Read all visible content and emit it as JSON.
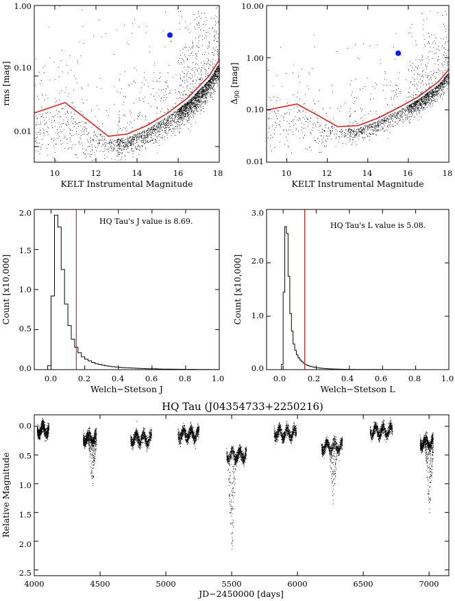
{
  "chart_data": [
    {
      "id": "rms",
      "type": "scatter",
      "xlabel": "KELT Instrumental Magnitude",
      "ylabel": "rms [mag]",
      "xlim": [
        9,
        18
      ],
      "ylim": [
        0.006,
        1.0
      ],
      "yscale": "log",
      "xticks": [
        "10",
        "12",
        "14",
        "16",
        "18"
      ],
      "xtick_values": [
        10,
        12,
        14,
        16,
        18
      ],
      "yticks": [
        "1.00",
        "0.10",
        "0.01"
      ],
      "ytick_values": [
        1.0,
        0.1,
        0.01
      ],
      "red_line": {
        "x": [
          9.0,
          10.5,
          11.5,
          12.6,
          13.5,
          14.5,
          15.5,
          16.5,
          17.5,
          18.0
        ],
        "y": [
          0.03,
          0.042,
          0.025,
          0.014,
          0.015,
          0.02,
          0.03,
          0.05,
          0.1,
          0.17
        ]
      },
      "highlight": {
        "x": 15.6,
        "y": 0.38,
        "color": "#0a1cf0"
      },
      "point_color": "#000000",
      "line_color": "#e02020"
    },
    {
      "id": "delta90",
      "type": "scatter",
      "xlabel": "KELT Instrumental Magnitude",
      "ylabel": "Δ90 [mag]",
      "ylabel_main": "Δ",
      "ylabel_sub": "90",
      "ylabel_unit": " [mag]",
      "xlim": [
        9,
        18
      ],
      "ylim": [
        0.01,
        10.0
      ],
      "yscale": "log",
      "xticks": [
        "10",
        "12",
        "14",
        "16",
        "18"
      ],
      "xtick_values": [
        10,
        12,
        14,
        16,
        18
      ],
      "yticks": [
        "10.00",
        "1.00",
        "0.10",
        "0.01"
      ],
      "ytick_values": [
        10.0,
        1.0,
        0.1,
        0.01
      ],
      "red_line": {
        "x": [
          9.0,
          10.5,
          11.5,
          12.5,
          13.5,
          14.5,
          15.5,
          16.5,
          17.5,
          18.0
        ],
        "y": [
          0.1,
          0.13,
          0.08,
          0.048,
          0.05,
          0.07,
          0.11,
          0.18,
          0.35,
          0.6
        ]
      },
      "highlight": {
        "x": 15.5,
        "y": 1.22,
        "color": "#0a1cf0"
      },
      "point_color": "#000000",
      "line_color": "#e02020"
    },
    {
      "id": "hist_j",
      "type": "bar",
      "xlabel": "Welch−Stetson J",
      "ylabel": "Count [x10,000]",
      "annotation": "HQ Tau's J value is 8.69.",
      "xlim": [
        -0.1,
        1.0
      ],
      "ylim": [
        0,
        2.0
      ],
      "bin_width": 0.02,
      "bins_start": -0.02,
      "values": [
        0.05,
        0.92,
        1.93,
        1.78,
        1.25,
        0.82,
        0.55,
        0.38,
        0.28,
        0.21,
        0.16,
        0.13,
        0.11,
        0.09,
        0.075,
        0.065,
        0.056,
        0.048,
        0.042,
        0.037,
        0.033,
        0.029,
        0.026,
        0.023,
        0.021,
        0.019,
        0.017,
        0.015,
        0.014,
        0.012,
        0.011,
        0.01,
        0.009,
        0.008,
        0.007,
        0.006,
        0.006,
        0.005,
        0.005,
        0.004,
        0.004,
        0.003,
        0.003,
        0.003,
        0.002,
        0.002,
        0.002,
        0.002,
        0.001,
        0.001,
        0.001
      ],
      "threshold": 0.15,
      "xticks": [
        "0.0",
        "0.2",
        "0.4",
        "0.6",
        "0.8",
        "1.0"
      ],
      "xtick_values": [
        0.0,
        0.2,
        0.4,
        0.6,
        0.8,
        1.0
      ],
      "yticks": [
        "2.0",
        "1.5",
        "1.0",
        "0.5",
        "0.0"
      ],
      "ytick_values": [
        2.0,
        1.5,
        1.0,
        0.5,
        0.0
      ],
      "line_color": "#e02020"
    },
    {
      "id": "hist_l",
      "type": "bar",
      "xlabel": "Welch−Stetson L",
      "ylabel": "Count [x10,000]",
      "annotation": "HQ Tau's L value is 5.08.",
      "xlim": [
        -0.1,
        1.0
      ],
      "ylim": [
        0,
        3.0
      ],
      "bin_width": 0.01,
      "bins_start": -0.01,
      "values": [
        0.1,
        1.45,
        2.68,
        2.55,
        1.75,
        1.05,
        0.72,
        0.48,
        0.36,
        0.28,
        0.22,
        0.18,
        0.15,
        0.12,
        0.1,
        0.085,
        0.072,
        0.062,
        0.054,
        0.047,
        0.041,
        0.036,
        0.032,
        0.028,
        0.025,
        0.022,
        0.02,
        0.018,
        0.016,
        0.014,
        0.013,
        0.012,
        0.011,
        0.01,
        0.009,
        0.008,
        0.008,
        0.007,
        0.007,
        0.006,
        0.006,
        0.005,
        0.005,
        0.005,
        0.004,
        0.004,
        0.004,
        0.003,
        0.003,
        0.003,
        0.003,
        0.003,
        0.002,
        0.002,
        0.002,
        0.002,
        0.002,
        0.002,
        0.002,
        0.002,
        0.001,
        0.001,
        0.001,
        0.001,
        0.001,
        0.001,
        0.001,
        0.001,
        0.001,
        0.001,
        0.001,
        0.001
      ],
      "threshold": 0.13,
      "xticks": [
        "0.0",
        "0.2",
        "0.4",
        "0.6",
        "0.8",
        "1.0"
      ],
      "xtick_values": [
        0.0,
        0.2,
        0.4,
        0.6,
        0.8,
        1.0
      ],
      "yticks": [
        "3.0",
        "2.0",
        "1.0",
        "0.0"
      ],
      "ytick_values": [
        3.0,
        2.0,
        1.0,
        0.0
      ],
      "line_color": "#e02020"
    },
    {
      "id": "lightcurve",
      "type": "scatter",
      "title": "HQ Tau (J04354733+2250216)",
      "xlabel": "JD−2450000 [days]",
      "ylabel": "Relative Magnitude",
      "xlim": [
        4000,
        7150
      ],
      "ylim": [
        2.6,
        -0.2
      ],
      "inverted_y": true,
      "xticks": [
        "4000",
        "4500",
        "5000",
        "5500",
        "6000",
        "6500",
        "7000"
      ],
      "xtick_values": [
        4000,
        4500,
        5000,
        5500,
        6000,
        6500,
        7000
      ],
      "yticks": [
        "0.0",
        "0.5",
        "1.0",
        "1.5",
        "2.0",
        "2.5"
      ],
      "ytick_values": [
        0.0,
        0.5,
        1.0,
        1.5,
        2.0,
        2.5
      ],
      "seasons": [
        {
          "start": 4020,
          "end": 4110,
          "base": 0.06
        },
        {
          "start": 4370,
          "end": 4470,
          "base": 0.2,
          "dip": 1.1,
          "dip_at": 4440
        },
        {
          "start": 4730,
          "end": 4890,
          "base": 0.22
        },
        {
          "start": 5090,
          "end": 5250,
          "base": 0.14
        },
        {
          "start": 5460,
          "end": 5610,
          "base": 0.5,
          "dip": 2.3,
          "dip_at": 5500
        },
        {
          "start": 5820,
          "end": 5990,
          "base": 0.12
        },
        {
          "start": 6180,
          "end": 6340,
          "base": 0.35,
          "dip": 1.4,
          "dip_at": 6270
        },
        {
          "start": 6550,
          "end": 6720,
          "base": 0.08
        },
        {
          "start": 6930,
          "end": 7030,
          "base": 0.28,
          "dip": 1.6,
          "dip_at": 7000
        }
      ],
      "point_color": "#000000"
    }
  ]
}
